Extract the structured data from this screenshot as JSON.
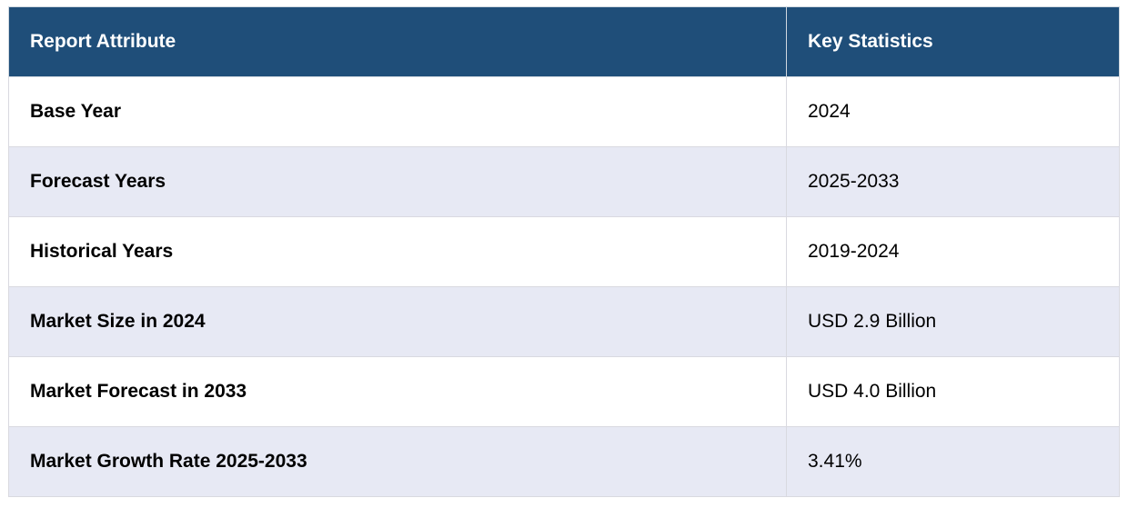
{
  "table": {
    "header": [
      "Report Attribute",
      "Key Statistics"
    ],
    "rows": [
      [
        "Base Year",
        "2024"
      ],
      [
        "Forecast Years",
        "2025-2033"
      ],
      [
        "Historical Years",
        "2019-2024"
      ],
      [
        "Market Size in 2024",
        "USD 2.9 Billion"
      ],
      [
        "Market Forecast in 2033",
        "USD 4.0 Billion"
      ],
      [
        "Market Growth Rate 2025-2033",
        "3.41%"
      ]
    ]
  }
}
